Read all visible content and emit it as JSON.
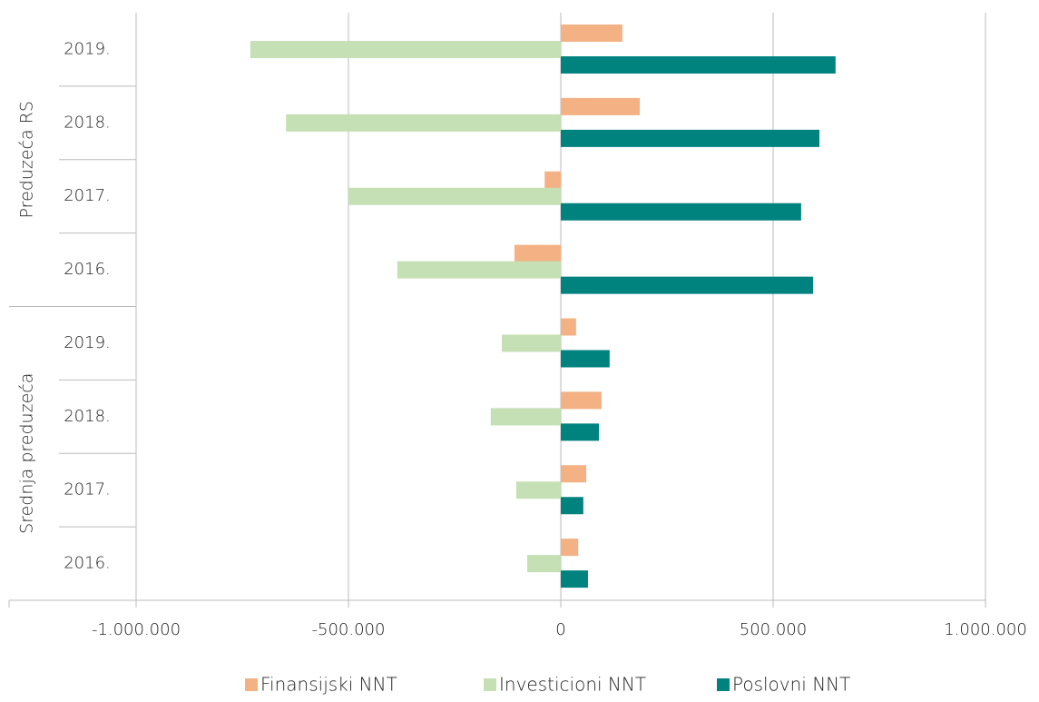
{
  "chart_data": {
    "type": "hbar",
    "category_groups": [
      {
        "label": "Preduzeća RS",
        "categories": [
          "2019.",
          "2018.",
          "2017.",
          "2016."
        ]
      },
      {
        "label": "Srednja preduzeća",
        "categories": [
          "2019.",
          "2018.",
          "2017.",
          "2016."
        ]
      }
    ],
    "series": [
      {
        "name": "Finansijski NNT",
        "color": "#f4b183",
        "values": [
          145000,
          186000,
          -38000,
          -109000,
          36000,
          96000,
          60000,
          41000
        ]
      },
      {
        "name": "Investicioni NNT",
        "color": "#c5e0b4",
        "values": [
          -731000,
          -647000,
          -500000,
          -385000,
          -139000,
          -165000,
          -105000,
          -79000
        ]
      },
      {
        "name": "Poslovni NNT",
        "color": "#00827f",
        "values": [
          647000,
          609000,
          566000,
          594000,
          115000,
          90000,
          53000,
          64000
        ]
      }
    ],
    "xlim": [
      -1000000,
      1000000
    ],
    "xticks": [
      {
        "value": -1000000,
        "label": "-1.000.000"
      },
      {
        "value": -500000,
        "label": "-500.000"
      },
      0,
      {
        "value": 500000,
        "label": "500.000"
      },
      {
        "value": 1000000,
        "label": "1.000.000"
      }
    ],
    "grid": true,
    "legend": "bottom"
  }
}
